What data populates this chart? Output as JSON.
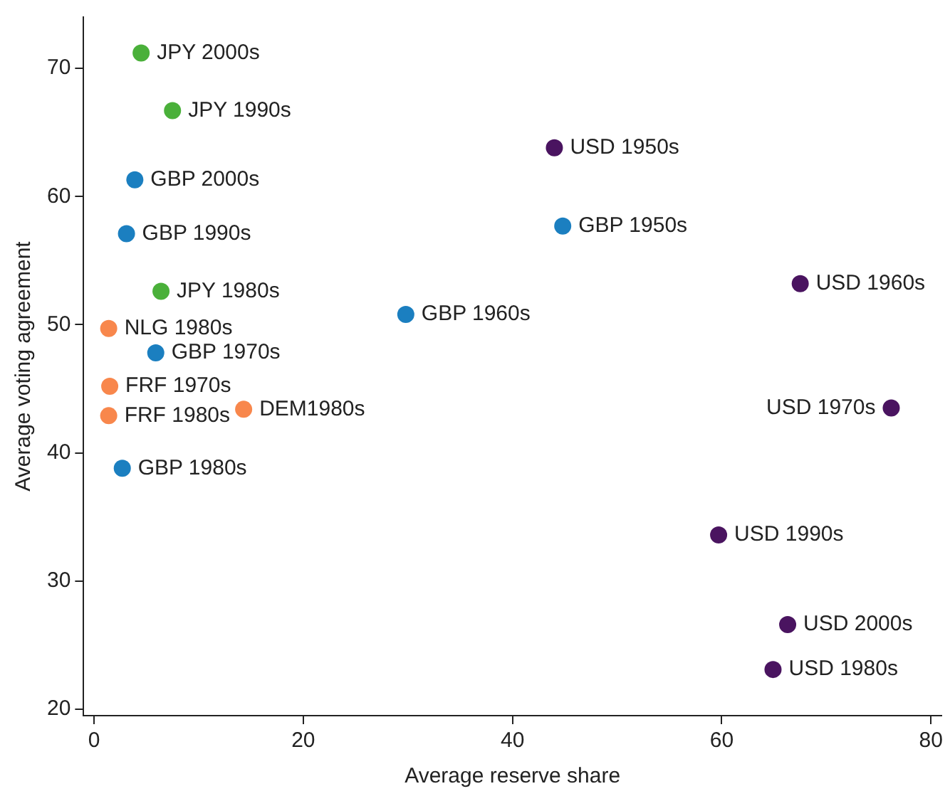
{
  "chart_data": {
    "type": "scatter",
    "xlabel": "Average reserve share",
    "ylabel": "Average voting agreement",
    "xlim": [
      -1,
      81
    ],
    "ylim": [
      19.5,
      74
    ],
    "xticks": [
      0,
      20,
      40,
      60,
      80
    ],
    "yticks": [
      20,
      30,
      40,
      50,
      60,
      70
    ],
    "grid": false,
    "legend": false,
    "marker": "circle",
    "series": [
      {
        "color": "#4ab03a",
        "x": [
          4.5,
          7.5,
          6.4
        ],
        "values": [
          71.2,
          66.7,
          52.6
        ]
      },
      {
        "color": "#1b7fc0",
        "x": [
          3.9,
          3.1,
          5.9,
          2.7,
          29.8,
          44.8
        ],
        "values": [
          61.3,
          57.1,
          47.8,
          38.8,
          50.8,
          57.7
        ]
      },
      {
        "color": "#f8874c",
        "x": [
          1.4,
          1.5,
          1.4,
          14.3
        ],
        "values": [
          49.7,
          45.2,
          42.9,
          43.4
        ]
      },
      {
        "color": "#4a1460",
        "x": [
          44.0,
          67.5,
          76.2,
          59.7,
          66.3,
          64.9
        ],
        "values": [
          63.8,
          53.2,
          43.5,
          33.6,
          26.6,
          23.1
        ]
      }
    ],
    "annotations": [
      {
        "text": "JPY 2000s",
        "x": 4.5,
        "y": 71.2
      },
      {
        "text": "JPY 1990s",
        "x": 7.5,
        "y": 66.7
      },
      {
        "text": "GBP 2000s",
        "x": 3.9,
        "y": 61.3
      },
      {
        "text": "GBP 1990s",
        "x": 3.1,
        "y": 57.1
      },
      {
        "text": "JPY 1980s",
        "x": 6.4,
        "y": 52.6
      },
      {
        "text": "NLG 1980s",
        "x": 1.4,
        "y": 49.7
      },
      {
        "text": "GBP 1970s",
        "x": 5.9,
        "y": 47.8
      },
      {
        "text": "FRF 1970s",
        "x": 1.5,
        "y": 45.2
      },
      {
        "text": "FRF 1980s",
        "x": 1.4,
        "y": 42.9
      },
      {
        "text": "DEM1980s",
        "x": 14.3,
        "y": 43.4
      },
      {
        "text": "GBP 1980s",
        "x": 2.7,
        "y": 38.8
      },
      {
        "text": "GBP 1960s",
        "x": 29.8,
        "y": 50.8
      },
      {
        "text": "GBP 1950s",
        "x": 44.8,
        "y": 57.7
      },
      {
        "text": "USD 1950s",
        "x": 44.0,
        "y": 63.8
      },
      {
        "text": "USD 1960s",
        "x": 67.5,
        "y": 53.2
      },
      {
        "text": "USD 1970s",
        "x": 76.2,
        "y": 43.5
      },
      {
        "text": "USD 1990s",
        "x": 59.7,
        "y": 33.6
      },
      {
        "text": "USD 2000s",
        "x": 66.3,
        "y": 26.6
      },
      {
        "text": "USD 1980s",
        "x": 64.9,
        "y": 23.1
      }
    ]
  }
}
